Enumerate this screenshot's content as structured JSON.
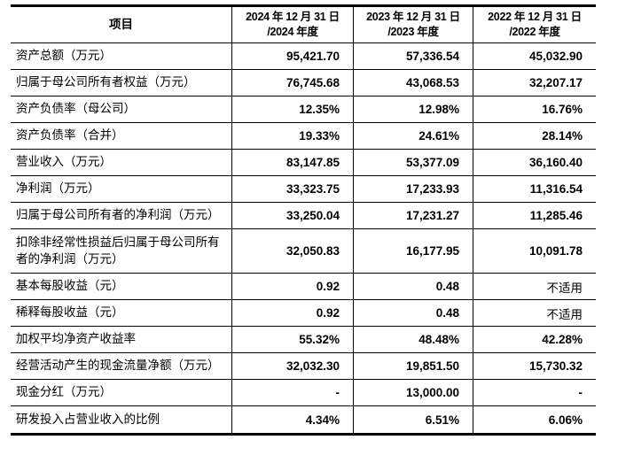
{
  "colors": {
    "background": "#ffffff",
    "text": "#000000",
    "border": "#000000"
  },
  "table": {
    "header": {
      "item": "项目",
      "cols": [
        {
          "line1": "2024 年 12 月 31 日",
          "line2": "/2024 年度"
        },
        {
          "line1": "2023 年 12 月 31 日",
          "line2": "/2023 年度"
        },
        {
          "line1": "2022 年 12 月 31 日",
          "line2": "/2022 年度"
        }
      ]
    },
    "rows": [
      {
        "label": "资产总额（万元）",
        "values": [
          "95,421.70",
          "57,336.54",
          "45,032.90"
        ]
      },
      {
        "label": "归属于母公司所有者权益（万元）",
        "values": [
          "76,745.68",
          "43,068.53",
          "32,207.17"
        ]
      },
      {
        "label": "资产负债率（母公司）",
        "values": [
          "12.35%",
          "12.98%",
          "16.76%"
        ]
      },
      {
        "label": "资产负债率（合并）",
        "values": [
          "19.33%",
          "24.61%",
          "28.14%"
        ]
      },
      {
        "label": "营业收入（万元）",
        "values": [
          "83,147.85",
          "53,377.09",
          "36,160.40"
        ]
      },
      {
        "label": "净利润（万元）",
        "values": [
          "33,323.75",
          "17,233.93",
          "11,316.54"
        ]
      },
      {
        "label": "归属于母公司所有者的净利润（万元）",
        "values": [
          "33,250.04",
          "17,231.27",
          "11,285.46"
        ]
      },
      {
        "label": "扣除非经常性损益后归属于母公司所有者的净利润（万元）",
        "values": [
          "32,050.83",
          "16,177.95",
          "10,091.78"
        ]
      },
      {
        "label": "基本每股收益（元）",
        "values": [
          "0.92",
          "0.48",
          "不适用"
        ]
      },
      {
        "label": "稀释每股收益（元）",
        "values": [
          "0.92",
          "0.48",
          "不适用"
        ]
      },
      {
        "label": "加权平均净资产收益率",
        "values": [
          "55.32%",
          "48.48%",
          "42.28%"
        ]
      },
      {
        "label": "经营活动产生的现金流量净额（万元）",
        "values": [
          "32,032.30",
          "19,851.50",
          "15,730.32"
        ]
      },
      {
        "label": "现金分红（万元）",
        "values": [
          "-",
          "13,000.00",
          "-"
        ]
      },
      {
        "label": "研发投入占营业收入的比例",
        "values": [
          "4.34%",
          "6.51%",
          "6.06%"
        ]
      }
    ]
  }
}
